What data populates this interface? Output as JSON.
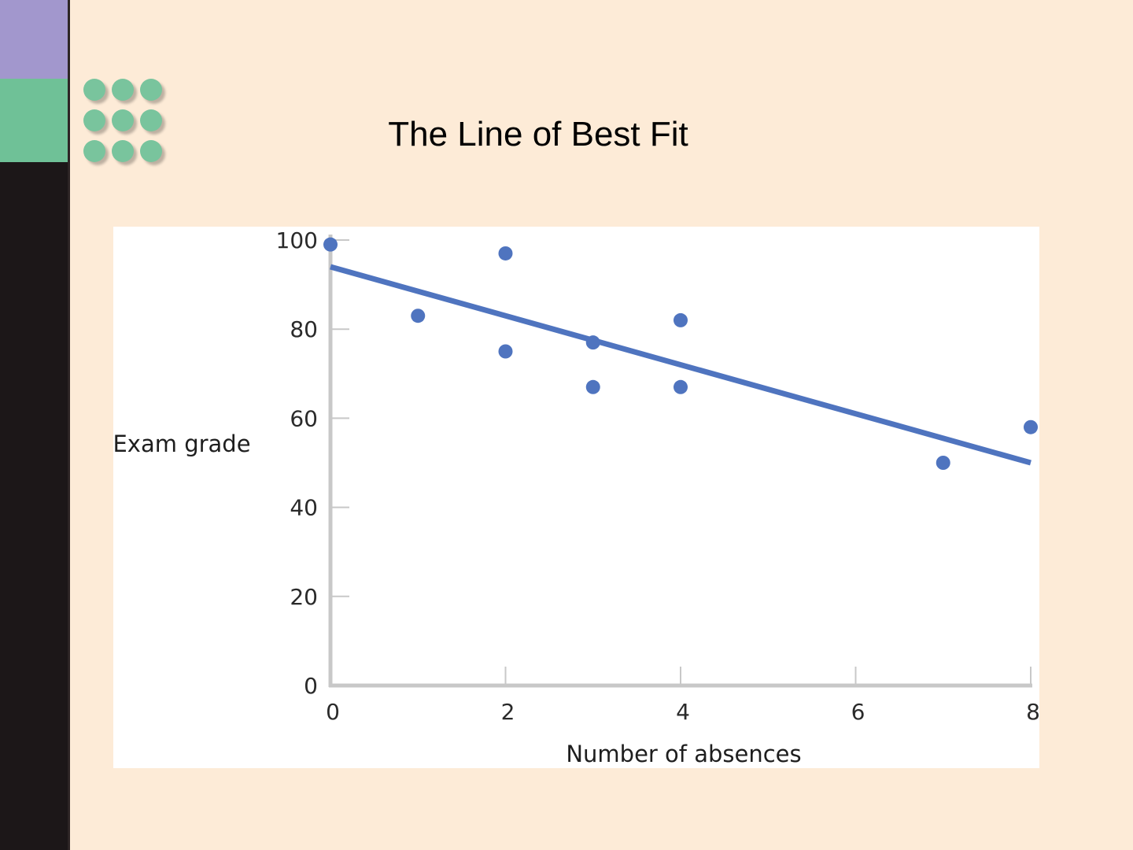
{
  "slide": {
    "title": "The Line of Best Fit"
  },
  "colors": {
    "background": "#fdebd7",
    "sidebar_dark": "#1c1718",
    "sidebar_purple": "#a297cd",
    "sidebar_green": "#6fc197",
    "dot_decoration": "#79c49d",
    "series": "#4f74bf",
    "axis": "#c8c8c8"
  },
  "decoration": {
    "icon": "dot-grid-icon",
    "rows": 3,
    "cols": 3
  },
  "chart_data": {
    "type": "scatter",
    "xlabel": "Number of absences",
    "ylabel": "Exam grade",
    "xlim": [
      0,
      8
    ],
    "ylim": [
      0,
      100
    ],
    "xticks": [
      "0",
      "2",
      "4",
      "6",
      "8"
    ],
    "yticks": [
      "0",
      "20",
      "40",
      "60",
      "80",
      "100"
    ],
    "grid": false,
    "legend": "none",
    "series": [
      {
        "points": [
          {
            "x": 0,
            "y": 99
          },
          {
            "x": 1,
            "y": 83
          },
          {
            "x": 2,
            "y": 97
          },
          {
            "x": 2,
            "y": 75
          },
          {
            "x": 3,
            "y": 77
          },
          {
            "x": 3,
            "y": 67
          },
          {
            "x": 4,
            "y": 82
          },
          {
            "x": 4,
            "y": 67
          },
          {
            "x": 7,
            "y": 50
          },
          {
            "x": 8,
            "y": 58
          }
        ]
      }
    ],
    "fit_line": {
      "x": [
        0,
        8
      ],
      "y": [
        94,
        50
      ]
    }
  }
}
